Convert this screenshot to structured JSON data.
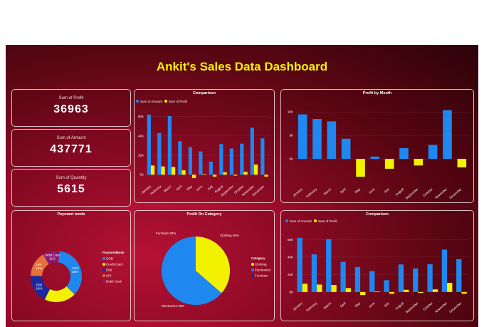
{
  "title": "Ankit's Sales Data Dashboard",
  "kpis": [
    {
      "label": "Sum of Profit",
      "value": "36963"
    },
    {
      "label": "Sum of Amount",
      "value": "437771"
    },
    {
      "label": "Sum of Quantity",
      "value": "5615"
    }
  ],
  "colors": {
    "amount": "#1e88f0",
    "profit": "#f2f200",
    "cod": "#1e88f0",
    "credit_card": "#f2f200",
    "emi": "#1a2a9c",
    "upi": "#e5703a",
    "debit_card": "#8a1a6e"
  },
  "chart_data": [
    {
      "type": "bar",
      "title": "Comparison",
      "categories": [
        "January",
        "February",
        "March",
        "April",
        "May",
        "June",
        "July",
        "August",
        "September",
        "October",
        "November",
        "December"
      ],
      "series": [
        {
          "name": "Sum of Amount",
          "values": [
            62000,
            43000,
            60500,
            34500,
            28500,
            24000,
            13500,
            31500,
            27000,
            32000,
            48500,
            37500
          ]
        },
        {
          "name": "Sum of Profit",
          "values": [
            9500,
            8500,
            8000,
            4500,
            -3500,
            500,
            -2000,
            2500,
            -1000,
            3000,
            10500,
            -2000
          ]
        }
      ],
      "yticks": [
        "60K",
        "40K",
        "20K",
        "0K"
      ],
      "ylim": [
        -5000,
        70000
      ]
    },
    {
      "type": "bar",
      "title": "Profit by Month",
      "categories": [
        "January",
        "February",
        "March",
        "April",
        "May",
        "June",
        "July",
        "August",
        "September",
        "October",
        "November",
        "December"
      ],
      "series": [
        {
          "name": "Profit",
          "values": [
            9500,
            8500,
            8000,
            4300,
            -3800,
            500,
            -2100,
            2300,
            -1400,
            3000,
            10400,
            -1800
          ]
        }
      ],
      "yticks": [
        "10K",
        "5K",
        "0K"
      ],
      "ylim": [
        -5000,
        12000
      ]
    },
    {
      "type": "pie",
      "title": "Paymant mods",
      "legend_title": "PaymentMode",
      "slices": [
        {
          "name": "COD",
          "label": "COD 35%",
          "value": 35
        },
        {
          "name": "Credit Card",
          "label": "",
          "value": 20
        },
        {
          "name": "EMI",
          "label": "EMI 18%",
          "value": 18
        },
        {
          "name": "UPI",
          "label": "UPI 16%",
          "value": 16
        },
        {
          "name": "Debit Card",
          "label": "Debit Card 11%",
          "value": 11
        }
      ]
    },
    {
      "type": "pie",
      "title": "Profit On Category",
      "legend_title": "Category",
      "slices": [
        {
          "name": "Clothing",
          "label": "Clothing 36%",
          "value": 36
        },
        {
          "name": "Electronics",
          "label": "Electronics 35%",
          "value": 35
        },
        {
          "name": "Furniture",
          "label": "Furniture 28%",
          "value": 28
        }
      ]
    },
    {
      "type": "bar",
      "title": "Comparison",
      "categories": [
        "January",
        "February",
        "March",
        "April",
        "May",
        "June",
        "July",
        "August",
        "September",
        "October",
        "November",
        "December"
      ],
      "series": [
        {
          "name": "Sum of Amount",
          "values": [
            62000,
            43000,
            60500,
            34500,
            28500,
            24000,
            13500,
            31500,
            27000,
            32000,
            48500,
            37500
          ]
        },
        {
          "name": "Sum of Profit",
          "values": [
            9500,
            8500,
            8000,
            4500,
            -3500,
            500,
            -2000,
            2500,
            -1000,
            3000,
            10500,
            -2000
          ]
        }
      ],
      "yticks": [
        "60K",
        "40K",
        "20K",
        "0K"
      ],
      "ylim": [
        -5000,
        70000
      ]
    }
  ]
}
